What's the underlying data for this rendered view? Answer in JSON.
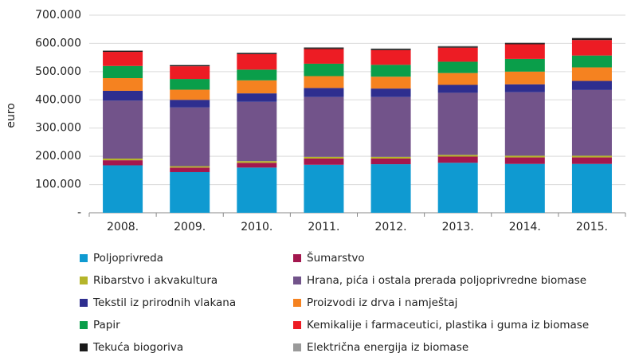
{
  "chart_data": {
    "type": "stacked_bar",
    "y_label": "euro",
    "categories": [
      "2008.",
      "2009.",
      "2010.",
      "2011.",
      "2012.",
      "2013.",
      "2014.",
      "2015."
    ],
    "ylim": [
      0,
      700000
    ],
    "yticks": [
      {
        "value": 0,
        "label": "-"
      },
      {
        "value": 100000,
        "label": "100.000"
      },
      {
        "value": 200000,
        "label": "200.000"
      },
      {
        "value": 300000,
        "label": "300.000"
      },
      {
        "value": 400000,
        "label": "400.000"
      },
      {
        "value": 500000,
        "label": "500.000"
      },
      {
        "value": 600000,
        "label": "600.000"
      },
      {
        "value": 700000,
        "label": "700.000"
      }
    ],
    "grid": true,
    "series": [
      {
        "name": "Poljoprivreda",
        "color": "#0f9ad1",
        "values": [
          168000,
          144000,
          160000,
          170000,
          172000,
          177000,
          173000,
          173000
        ]
      },
      {
        "name": "Šumarstvo",
        "color": "#a3174e",
        "values": [
          18000,
          16000,
          17000,
          22000,
          20000,
          22000,
          23000,
          23000
        ]
      },
      {
        "name": "Ribarstvo i akvakultura",
        "color": "#b5b52a",
        "values": [
          6000,
          5000,
          6000,
          6000,
          6000,
          6000,
          6000,
          6000
        ]
      },
      {
        "name": "Hrana, pića i ostala prerada poljoprivredne biomase",
        "color": "#72538a",
        "values": [
          205000,
          208000,
          210000,
          212000,
          212000,
          220000,
          225000,
          233000
        ]
      },
      {
        "name": "Tekstil iz prirodnih vlakana",
        "color": "#2e2e8f",
        "values": [
          35000,
          27000,
          30000,
          32000,
          30000,
          28000,
          28000,
          32000
        ]
      },
      {
        "name": "Proizvodi iz drva i namještaj",
        "color": "#f58220",
        "values": [
          45000,
          36000,
          46000,
          42000,
          42000,
          42000,
          45000,
          48000
        ]
      },
      {
        "name": "Papir",
        "color": "#0a9e4a",
        "values": [
          43000,
          38000,
          38000,
          44000,
          42000,
          40000,
          45000,
          42000
        ]
      },
      {
        "name": "Kemikalije i farmaceutici, plastika i guma iz biomase",
        "color": "#ed1c24",
        "values": [
          50000,
          45000,
          55000,
          52000,
          52000,
          50000,
          52000,
          55000
        ]
      },
      {
        "name": "Tekuća biogoriva",
        "color": "#1a1a1a",
        "values": [
          4000,
          4000,
          4000,
          4000,
          4000,
          4000,
          4000,
          6000
        ]
      },
      {
        "name": "Električna energija iz biomase",
        "color": "#9a9a9a",
        "values": [
          1000,
          1000,
          1000,
          3000,
          2000,
          2000,
          2000,
          2000
        ]
      }
    ]
  }
}
